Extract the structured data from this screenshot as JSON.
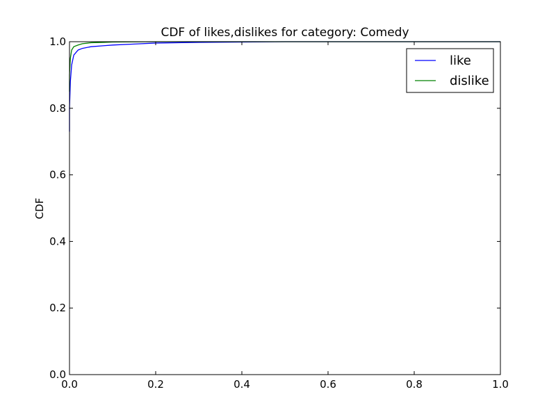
{
  "chart_data": {
    "type": "line",
    "title": "CDF of likes,dislikes for category: Comedy",
    "xlabel": "",
    "ylabel": "CDF",
    "xlim": [
      0.0,
      1.0
    ],
    "ylim": [
      0.0,
      1.0
    ],
    "x_ticks": [
      "0.0",
      "0.2",
      "0.4",
      "0.6",
      "0.8",
      "1.0"
    ],
    "y_ticks": [
      "0.0",
      "0.2",
      "0.4",
      "0.6",
      "0.8",
      "1.0"
    ],
    "grid": false,
    "legend_position": "top-right",
    "series": [
      {
        "name": "like",
        "color": "#0000ff",
        "x": [
          0.0,
          0.0,
          0.002,
          0.005,
          0.01,
          0.02,
          0.03,
          0.05,
          0.08,
          0.1,
          0.15,
          0.2,
          0.3,
          0.4,
          0.5,
          1.0
        ],
        "y": [
          0.73,
          0.8,
          0.88,
          0.93,
          0.96,
          0.975,
          0.98,
          0.985,
          0.988,
          0.99,
          0.993,
          0.996,
          0.998,
          0.999,
          1.0,
          1.0
        ]
      },
      {
        "name": "dislike",
        "color": "#008000",
        "x": [
          0.0,
          0.0,
          0.002,
          0.005,
          0.01,
          0.02,
          0.03,
          0.05,
          0.08,
          0.1,
          0.2,
          0.3,
          1.0
        ],
        "y": [
          0.85,
          0.9,
          0.95,
          0.975,
          0.985,
          0.99,
          0.994,
          0.997,
          0.998,
          0.999,
          1.0,
          1.0,
          1.0
        ]
      }
    ]
  }
}
